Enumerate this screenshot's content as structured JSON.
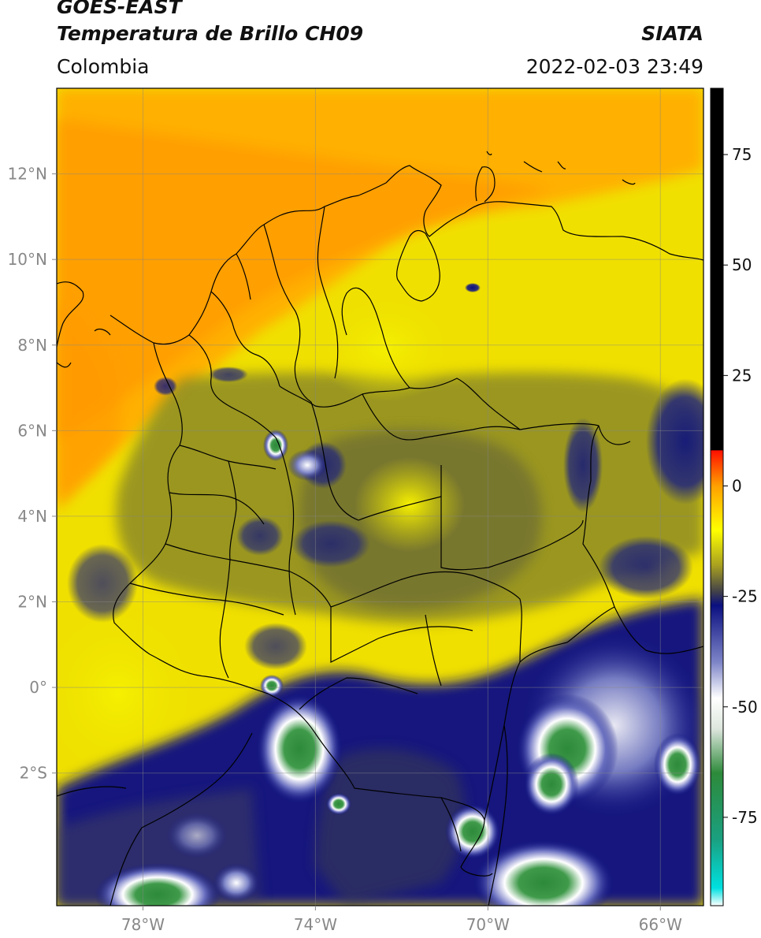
{
  "header": {
    "satellite": "GOES-EAST",
    "product": "Temperatura de Brillo CH09",
    "organization": "SIATA",
    "region": "Colombia",
    "timestamp": "2022-02-03 23:49"
  },
  "map": {
    "lon_range": [
      -80,
      -65
    ],
    "lat_range": [
      -5.1,
      14
    ],
    "lon_ticks": [
      {
        "value": -78,
        "label": "78°W"
      },
      {
        "value": -74,
        "label": "74°W"
      },
      {
        "value": -70,
        "label": "70°W"
      },
      {
        "value": -66,
        "label": "66°W"
      }
    ],
    "lat_ticks": [
      {
        "value": 12,
        "label": "12°N"
      },
      {
        "value": 10,
        "label": "10°N"
      },
      {
        "value": 8,
        "label": "8°N"
      },
      {
        "value": 6,
        "label": "6°N"
      },
      {
        "value": 4,
        "label": "4°N"
      },
      {
        "value": 2,
        "label": "2°N"
      },
      {
        "value": 0,
        "label": "0°"
      },
      {
        "value": -2,
        "label": "2°S"
      }
    ],
    "gridlines": true
  },
  "colorbar": {
    "range": [
      -95,
      90
    ],
    "ticks": [
      {
        "value": 75,
        "label": "75"
      },
      {
        "value": 50,
        "label": "50"
      },
      {
        "value": 25,
        "label": "25"
      },
      {
        "value": 0,
        "label": "0"
      },
      {
        "value": -25,
        "label": "-25"
      },
      {
        "value": -50,
        "label": "-50"
      },
      {
        "value": -75,
        "label": "-75"
      }
    ],
    "stops": [
      {
        "value": -95,
        "color": "#ffffff"
      },
      {
        "value": -91,
        "color": "#00e0e0"
      },
      {
        "value": -80,
        "color": "#1aa080"
      },
      {
        "value": -65,
        "color": "#2d8a3a"
      },
      {
        "value": -55,
        "color": "#dde6dd"
      },
      {
        "value": -48,
        "color": "#ffffff"
      },
      {
        "value": -40,
        "color": "#7f86c8"
      },
      {
        "value": -27,
        "color": "#0a0f80"
      },
      {
        "value": -24,
        "color": "#40404a"
      },
      {
        "value": -18,
        "color": "#a8a020"
      },
      {
        "value": -10,
        "color": "#ffff00"
      },
      {
        "value": 0,
        "color": "#ffa000"
      },
      {
        "value": 8,
        "color": "#ff1000"
      },
      {
        "value": 8.1,
        "color": "#000000"
      },
      {
        "value": 90,
        "color": "#000000"
      }
    ]
  }
}
